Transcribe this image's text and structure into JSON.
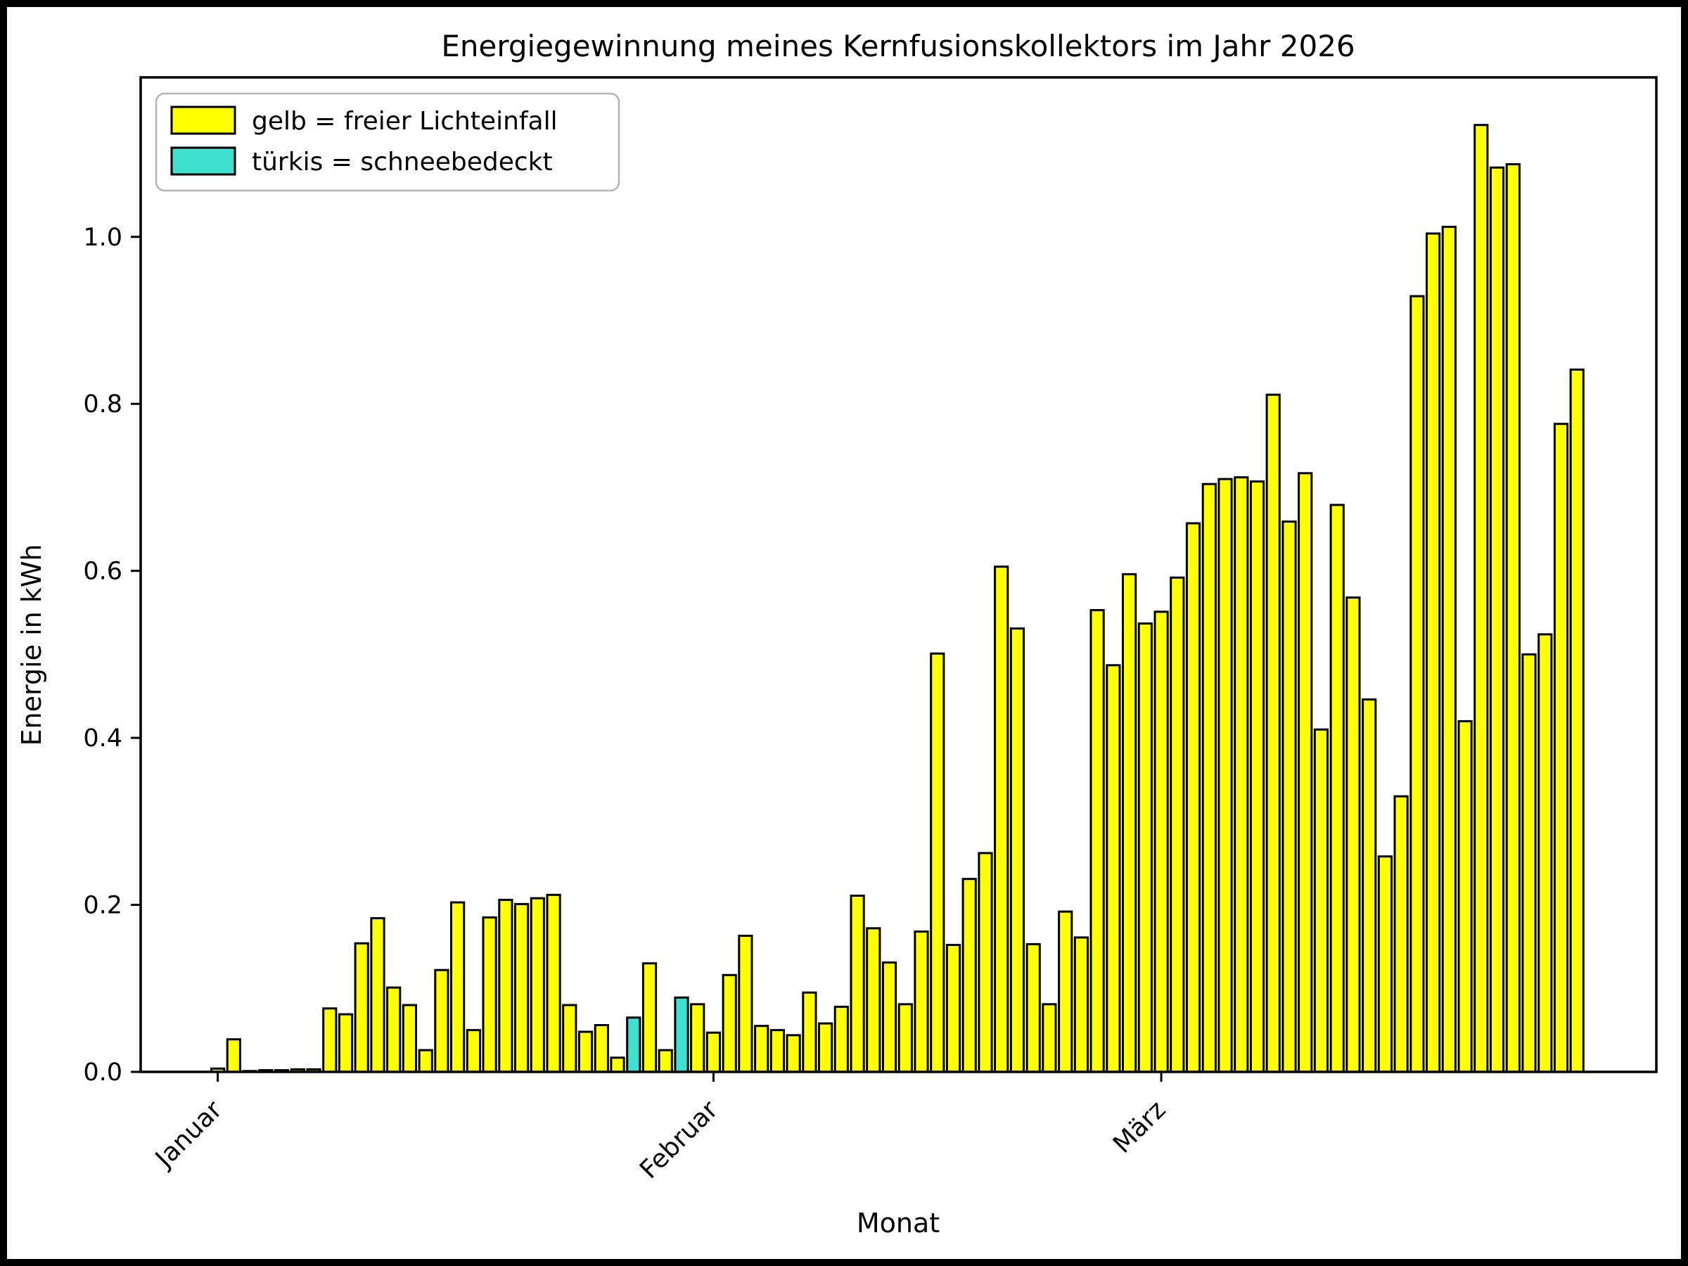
{
  "chart_data": {
    "type": "bar",
    "title": "Energiegewinnung meines Kernfusionskollektors im Jahr 2026",
    "xlabel": "Monat",
    "ylabel": "Energie in kWh",
    "legend": [
      {
        "label": "gelb = freier Lichteinfall",
        "color": "#ffff00"
      },
      {
        "label": "türkis = schneebedeckt",
        "color": "#40e0d0"
      }
    ],
    "colors": {
      "free": "#ffff00",
      "snow": "#40e0d0",
      "edge": "#000000"
    },
    "x_description": "ein Balken pro Tag, Tag 1 = 1. Januar",
    "values": [
      0.004,
      0.039,
      0.001,
      0.002,
      0.002,
      0.003,
      0.003,
      0.076,
      0.069,
      0.154,
      0.184,
      0.101,
      0.08,
      0.026,
      0.122,
      0.203,
      0.05,
      0.185,
      0.206,
      0.201,
      0.208,
      0.212,
      0.08,
      0.048,
      0.056,
      0.017,
      0.065,
      0.13,
      0.026,
      0.089,
      0.081,
      0.047,
      0.116,
      0.163,
      0.055,
      0.05,
      0.044,
      0.095,
      0.058,
      0.078,
      0.211,
      0.172,
      0.131,
      0.081,
      0.168,
      0.501,
      0.152,
      0.231,
      0.262,
      0.605,
      0.531,
      0.153,
      0.081,
      0.192,
      0.161,
      0.553,
      0.487,
      0.596,
      0.537,
      0.551,
      0.592,
      0.657,
      0.704,
      0.71,
      0.712,
      0.707,
      0.811,
      0.659,
      0.717,
      0.41,
      0.679,
      0.568,
      0.446,
      0.258,
      0.33,
      0.929,
      1.004,
      1.012,
      0.42,
      1.134,
      1.083,
      1.087,
      0.5,
      0.524,
      0.776,
      0.841
    ],
    "snow_days": [
      27,
      30
    ],
    "yticks": [
      0.0,
      0.2,
      0.4,
      0.6,
      0.8,
      1.0
    ],
    "xticks": [
      {
        "label": "Januar",
        "day_index": 0
      },
      {
        "label": "Februar",
        "day_index": 31
      },
      {
        "label": "März",
        "day_index": 59
      }
    ],
    "axes": {
      "ylim": [
        0,
        1.191
      ],
      "xlim_day_index": [
        -4.82,
        89.96
      ],
      "grid": false,
      "legend_position": "upper-left"
    }
  }
}
